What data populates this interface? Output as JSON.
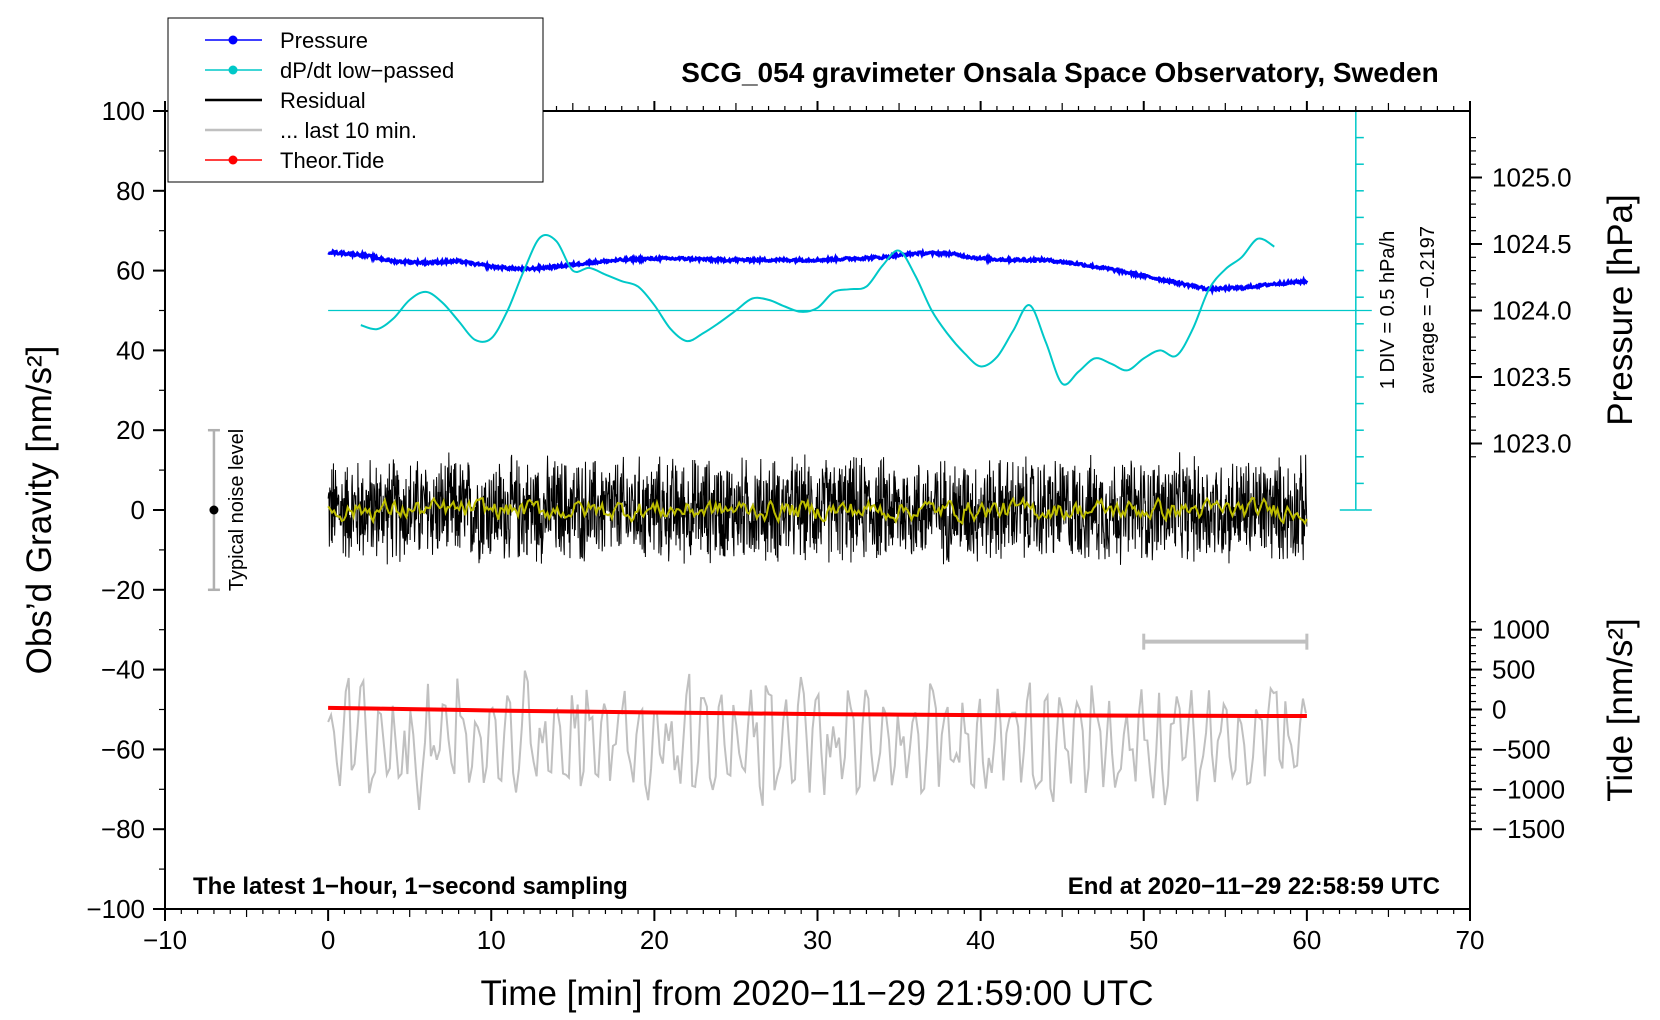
{
  "chart_data": {
    "type": "line",
    "title": "SCG_054 gravimeter Onsala Space Observatory, Sweden",
    "xlabel": "Time [min] from 2020−11−29 21:59:00 UTC",
    "ylabel_left": "Obs’d Gravity [nm/s²]",
    "ylabel_right_top": "Pressure [hPa]",
    "ylabel_right_bottom": "Tide [nm/s²]",
    "xlim": [
      -10,
      70
    ],
    "ylim_left": [
      -100,
      100
    ],
    "xticks": [
      {
        "value": -10,
        "label": "−10"
      },
      {
        "value": 0,
        "label": "0"
      },
      {
        "value": 10,
        "label": "10"
      },
      {
        "value": 20,
        "label": "20"
      },
      {
        "value": 30,
        "label": "30"
      },
      {
        "value": 40,
        "label": "40"
      },
      {
        "value": 50,
        "label": "50"
      },
      {
        "value": 60,
        "label": "60"
      },
      {
        "value": 70,
        "label": "70"
      }
    ],
    "yticks_left": [
      {
        "value": 100,
        "label": "100"
      },
      {
        "value": 80,
        "label": "80"
      },
      {
        "value": 60,
        "label": "60"
      },
      {
        "value": 40,
        "label": "40"
      },
      {
        "value": 20,
        "label": "20"
      },
      {
        "value": 0,
        "label": "0"
      },
      {
        "value": -20,
        "label": "−20"
      },
      {
        "value": -40,
        "label": "−40"
      },
      {
        "value": -60,
        "label": "−60"
      },
      {
        "value": -80,
        "label": "−80"
      },
      {
        "value": -100,
        "label": "−100"
      }
    ],
    "pressure_axis": {
      "map": {
        "hpa_ref": 1024.0,
        "g_ref": 50,
        "g_per_hpa": 33.33
      },
      "ticks": [
        {
          "value": 1025.0,
          "label": "1025.0"
        },
        {
          "value": 1024.5,
          "label": "1024.5"
        },
        {
          "value": 1024.0,
          "label": "1024.0"
        },
        {
          "value": 1023.5,
          "label": "1023.5"
        },
        {
          "value": 1023.0,
          "label": "1023.0"
        }
      ]
    },
    "tide_axis": {
      "map": {
        "tide_ref": 0,
        "g_ref": -50,
        "g_per_tide": 0.02
      },
      "ticks": [
        {
          "value": 1000,
          "label": "1000"
        },
        {
          "value": 500,
          "label": "500"
        },
        {
          "value": 0,
          "label": "0"
        },
        {
          "value": -500,
          "label": "−500"
        },
        {
          "value": -1000,
          "label": "−1000"
        },
        {
          "value": -1500,
          "label": "−1500"
        }
      ]
    },
    "series": [
      {
        "name": "Pressure",
        "color": "#0000ff",
        "axis": "pressure_hPa",
        "x": [
          0,
          2,
          4,
          6,
          8,
          10,
          12,
          14,
          16,
          18,
          20,
          22,
          24,
          26,
          28,
          30,
          32,
          34,
          36,
          38,
          40,
          42,
          44,
          46,
          48,
          50,
          52,
          54,
          56,
          58,
          60
        ],
        "y": [
          1024.44,
          1024.42,
          1024.37,
          1024.36,
          1024.37,
          1024.33,
          1024.31,
          1024.33,
          1024.36,
          1024.38,
          1024.39,
          1024.39,
          1024.38,
          1024.38,
          1024.38,
          1024.38,
          1024.39,
          1024.4,
          1024.43,
          1024.43,
          1024.39,
          1024.38,
          1024.38,
          1024.35,
          1024.31,
          1024.26,
          1024.21,
          1024.16,
          1024.17,
          1024.2,
          1024.22
        ]
      },
      {
        "name": "dP/dt low−passed",
        "color": "#00c8c8",
        "axis": "dpdt_divisions",
        "x": [
          2,
          3,
          4,
          5,
          6,
          7,
          8,
          9,
          10,
          11,
          12,
          13,
          14,
          15,
          16,
          17,
          18,
          19,
          20,
          21,
          22,
          23,
          24,
          25,
          26,
          27,
          28,
          29,
          30,
          31,
          32,
          33,
          34,
          35,
          36,
          37,
          38,
          39,
          40,
          41,
          42,
          43,
          44,
          45,
          46,
          47,
          48,
          49,
          50,
          51,
          52,
          53,
          54,
          55,
          56,
          57,
          58
        ],
        "y": [
          -0.55,
          -0.7,
          -0.3,
          0.4,
          0.7,
          0.3,
          -0.4,
          -1.1,
          -1.05,
          0.0,
          1.5,
          2.75,
          2.6,
          1.5,
          1.6,
          1.35,
          1.1,
          0.9,
          0.2,
          -0.7,
          -1.15,
          -0.85,
          -0.45,
          0.0,
          0.45,
          0.4,
          0.15,
          -0.05,
          0.1,
          0.7,
          0.8,
          0.9,
          1.7,
          2.25,
          1.3,
          0.0,
          -0.9,
          -1.6,
          -2.1,
          -1.75,
          -0.75,
          0.2,
          -1.2,
          -2.75,
          -2.3,
          -1.8,
          -2.0,
          -2.25,
          -1.8,
          -1.5,
          -1.7,
          -0.7,
          0.8,
          1.55,
          2.0,
          2.7,
          2.4
        ]
      },
      {
        "name": "Residual",
        "color": "#000000",
        "axis": "gravity_nm_s2",
        "amplitude": 15,
        "x_range": [
          0,
          60
        ]
      },
      {
        "name": "... last 10 min.",
        "color": "#c0c0c0",
        "axis": "gravity_nm_s2",
        "baseline": -58,
        "amplitude": 18,
        "x_range": [
          0,
          60
        ]
      },
      {
        "name": "Residual low−passed",
        "color": "#bdbd00",
        "axis": "gravity_nm_s2",
        "amplitude": 2,
        "x_range": [
          0,
          60
        ]
      },
      {
        "name": "Theor.Tide",
        "color": "#ff0000",
        "axis": "tide_nm_s2",
        "x": [
          0,
          5,
          10,
          15,
          20,
          25,
          30,
          35,
          40,
          45,
          50,
          55,
          60
        ],
        "y": [
          20,
          5,
          -12,
          -25,
          -38,
          -48,
          -58,
          -64,
          -70,
          -74,
          -77,
          -80,
          -82
        ]
      }
    ],
    "dpdt_scale": {
      "x": 63,
      "ylim_gravity": [
        0,
        100
      ],
      "zero_line_gravity": 50,
      "divisions": 15,
      "label_div": "1 DIV = 0.5 hPa/h",
      "label_avg": "average = −0.2197"
    },
    "noise_marker": {
      "x": -7,
      "ylim": [
        -20,
        20
      ],
      "label": "Typical noise level"
    },
    "window_bar": {
      "x_start": 50,
      "x_end": 60,
      "y_gravity": -33
    },
    "notes": {
      "left": "The latest 1−hour, 1−second sampling",
      "right": "End at 2020−11−29 22:58:59 UTC"
    },
    "legend": {
      "position": "top-left",
      "entries": [
        {
          "label": "Pressure",
          "color": "#0000ff",
          "marker": true
        },
        {
          "label": "dP/dt low−passed",
          "color": "#00c8c8",
          "marker": true
        },
        {
          "label": "Residual",
          "color": "#000000",
          "marker": false
        },
        {
          "label": "... last 10 min.",
          "color": "#c0c0c0",
          "marker": false
        },
        {
          "label": "Theor.Tide",
          "color": "#ff0000",
          "marker": true
        }
      ]
    }
  }
}
